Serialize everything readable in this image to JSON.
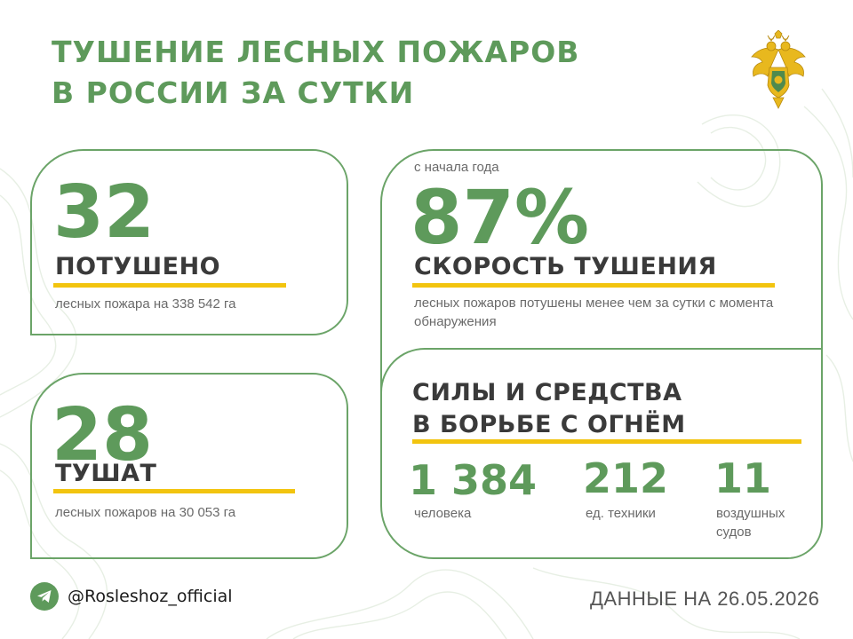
{
  "header": {
    "title_line1": "ТУШЕНИЕ ЛЕСНЫХ ПОЖАРОВ",
    "title_line2": "В РОССИИ ЗА СУТКИ"
  },
  "emblem": {
    "icon": "double-headed-eagle-emblem-icon"
  },
  "extinguished_card": {
    "number": "32",
    "label": "ПОТУШЕНО",
    "note": "лесных пожара на 338 542 га"
  },
  "burning_card": {
    "number": "28",
    "label": "ТУШАТ",
    "note": "лесных пожаров на 30 053 га"
  },
  "speed_card": {
    "pretitle": "с начала года",
    "number": "87%",
    "label": "СКОРОСТЬ ТУШЕНИЯ",
    "note": "лесных пожаров потушены менее чем за сутки с момента обнаружения"
  },
  "forces_card": {
    "heading_line1": "СИЛЫ И СРЕДСТВА",
    "heading_line2": "В БОРЬБЕ С ОГНЁМ",
    "stats": [
      {
        "value": "1 384",
        "label": "человека"
      },
      {
        "value": "212",
        "label": "ед. техники"
      },
      {
        "value": "11",
        "label": "воздушных судов"
      }
    ]
  },
  "footer": {
    "telegram_handle": "@Rosleshoz_official",
    "telegram_icon": "telegram-icon",
    "date_text": "ДАННЫЕ НА 26.05.2026"
  },
  "colors": {
    "accent_green": "#5e9a5b",
    "border_green": "#6ba468",
    "highlight_yellow": "#f2c40f",
    "emblem_gold": "#e8b81e"
  }
}
